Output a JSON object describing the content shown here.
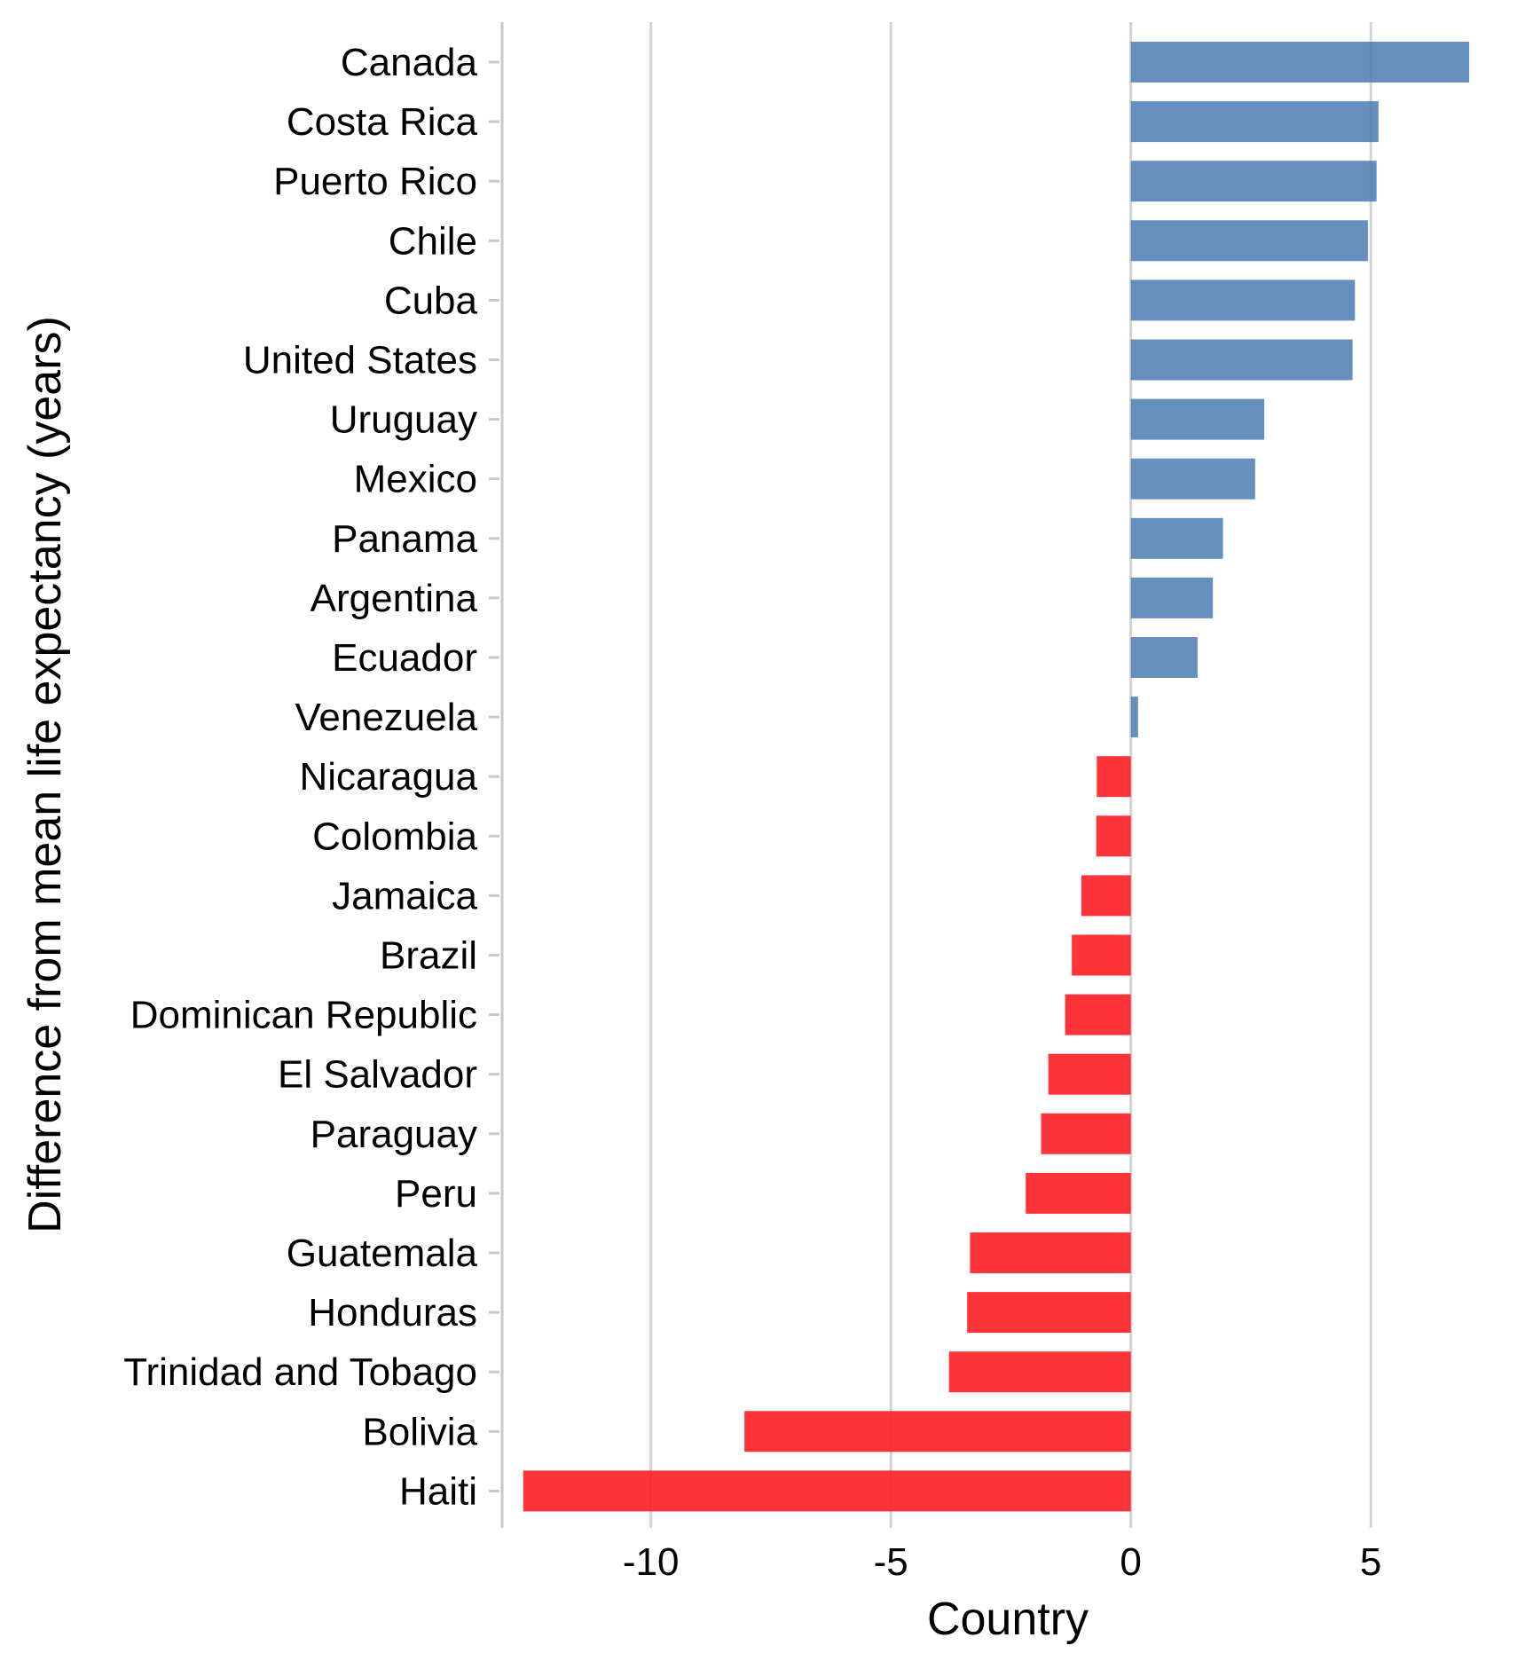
{
  "chart_data": {
    "type": "bar",
    "orientation": "horizontal",
    "title": "",
    "xlabel": "Country",
    "ylabel": "Difference from mean life expectancy (years)",
    "xlim": [
      -13.1,
      7.4
    ],
    "x_ticks": [
      -10,
      -5,
      0,
      5
    ],
    "x_tick_labels": [
      "-10",
      "-5",
      "0",
      "5"
    ],
    "grid": "vertical major gridlines",
    "legend": "none",
    "colors": {
      "positive": "#4a7bb0",
      "negative": "#ff0f17"
    },
    "categories": [
      "Canada",
      "Costa Rica",
      "Puerto Rico",
      "Chile",
      "Cuba",
      "United States",
      "Uruguay",
      "Mexico",
      "Panama",
      "Argentina",
      "Ecuador",
      "Venezuela",
      "Nicaragua",
      "Colombia",
      "Jamaica",
      "Brazil",
      "Dominican Republic",
      "El Salvador",
      "Paraguay",
      "Peru",
      "Guatemala",
      "Honduras",
      "Trinidad and Tobago",
      "Bolivia",
      "Haiti"
    ],
    "values": [
      7.05,
      5.16,
      5.12,
      4.94,
      4.67,
      4.62,
      2.78,
      2.59,
      1.92,
      1.71,
      1.39,
      0.15,
      -0.71,
      -0.72,
      -1.03,
      -1.23,
      -1.37,
      -1.72,
      -1.87,
      -2.19,
      -3.35,
      -3.41,
      -3.79,
      -8.05,
      -12.66
    ]
  }
}
